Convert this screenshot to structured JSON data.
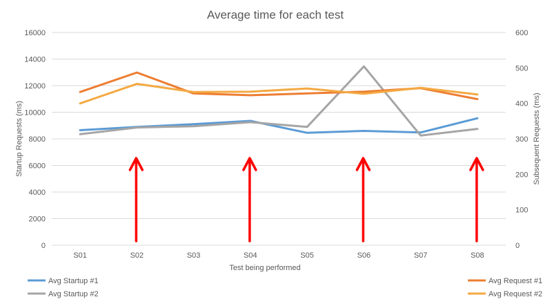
{
  "chart_data": {
    "type": "line",
    "title": "Average time for each test",
    "xlabel": "Test being performed",
    "ylabel_left": "Startup Requests (ms)",
    "ylabel_right": "Subsequent Requests (ms)",
    "categories": [
      "S01",
      "S02",
      "S03",
      "S04",
      "S05",
      "S06",
      "S07",
      "S08"
    ],
    "ylim_left": [
      0,
      16000
    ],
    "yticks_left": [
      "0",
      "2000",
      "4000",
      "6000",
      "8000",
      "10000",
      "12000",
      "14000",
      "16000"
    ],
    "ylim_right": [
      0,
      600
    ],
    "yticks_right": [
      "0",
      "100",
      "200",
      "300",
      "400",
      "500",
      "600"
    ],
    "grid": true,
    "series": [
      {
        "name": "Avg Startup #1",
        "axis": "left",
        "color": "#5b9bd5",
        "values": [
          8650,
          8900,
          9100,
          9350,
          8450,
          8600,
          8480,
          9550
        ]
      },
      {
        "name": "Avg Startup #2",
        "axis": "left",
        "color": "#a5a5a5",
        "values": [
          8350,
          8850,
          8950,
          9250,
          8900,
          13450,
          8250,
          8750
        ]
      },
      {
        "name": "Avg Request #1",
        "axis": "right",
        "color": "#ed7d31",
        "values": [
          432,
          487,
          428,
          423,
          428,
          433,
          443,
          412
        ]
      },
      {
        "name": "Avg Request #2",
        "axis": "right",
        "color": "#f4a942",
        "values": [
          400,
          455,
          432,
          433,
          442,
          427,
          444,
          425
        ]
      }
    ],
    "annotations": {
      "type": "red-arrows-pointing-up",
      "color": "#ff0000",
      "at_categories": [
        "S02",
        "S04",
        "S06",
        "S08"
      ]
    },
    "legend_placement": "bottom"
  }
}
